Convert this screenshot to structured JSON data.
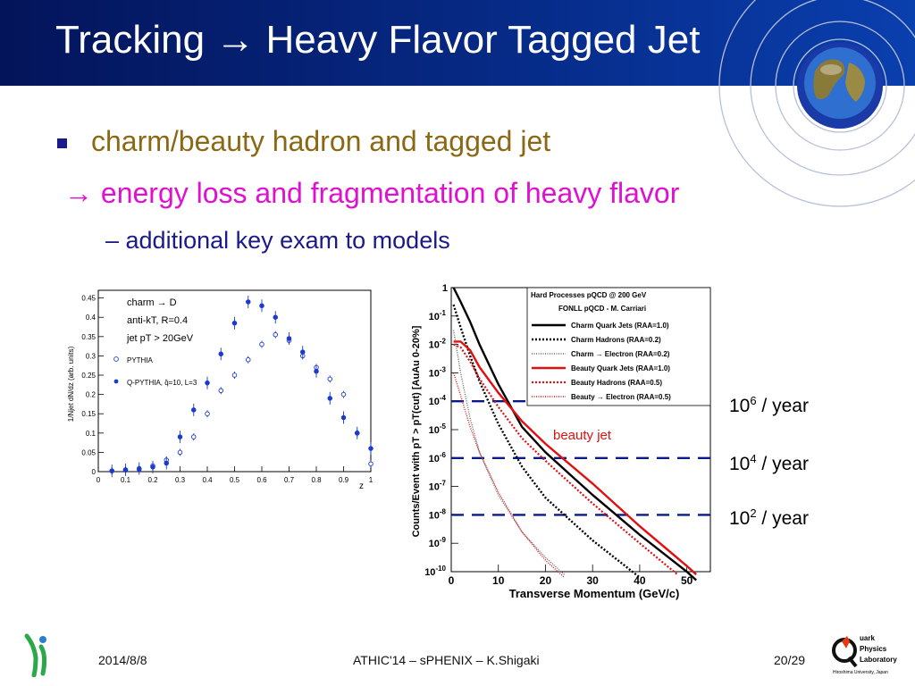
{
  "title": "Tracking → Heavy Flavor Tagged Jet",
  "bullets": {
    "b1": "charm/beauty hadron and tagged jet",
    "b2": "→ energy loss and fragmentation of heavy flavor",
    "b3": "– additional key exam to models"
  },
  "left_plot": {
    "legend": [
      "charm → D",
      "anti-kT, R=0.4",
      "jet pT > 20GeV"
    ],
    "series_names": [
      "PYTHIA",
      "Q-PYTHIA, q̂=10, L=3"
    ],
    "xlabel": "z",
    "ylabel": "1/Njet dN/dz (arb. units)",
    "xticks": [
      "0",
      "0.1",
      "0.2",
      "0.3",
      "0.4",
      "0.5",
      "0.6",
      "0.7",
      "0.8",
      "0.9",
      "1"
    ],
    "yticks": [
      "0",
      "0.05",
      "0.1",
      "0.15",
      "0.2",
      "0.25",
      "0.3",
      "0.35",
      "0.4",
      "0.45"
    ]
  },
  "right_plot": {
    "legend_title": "Hard Processes pQCD @ 200 GeV",
    "legend_subtitle": "FONLL pQCD - M. Carriari",
    "legend": [
      "Charm Quark Jets (RAA=1.0)",
      "Charm Hadrons (RAA=0.2)",
      "Charm → Electron (RAA=0.2)",
      "Beauty Quark Jets (RAA=1.0)",
      "Beauty Hadrons (RAA=0.5)",
      "Beauty → Electron (RAA=0.5)"
    ],
    "xlabel": "Transverse Momentum (GeV/c)",
    "ylabel": "Counts/Event with pT > pT(cut) [AuAu 0-20%]",
    "xticks": [
      "0",
      "10",
      "20",
      "30",
      "40",
      "50"
    ],
    "yticks": [
      "1",
      "10-1",
      "10-2",
      "10-3",
      "10-4",
      "10-5",
      "10-6",
      "10-7",
      "10-8",
      "10-9",
      "10-10"
    ],
    "annotation": "beauty jet",
    "rates": [
      {
        "base": "10",
        "exp": "6",
        "unit": " / year"
      },
      {
        "base": "10",
        "exp": "4",
        "unit": " / year"
      },
      {
        "base": "10",
        "exp": "2",
        "unit": " / year"
      }
    ]
  },
  "footer": {
    "date": "2014/8/8",
    "center": "ATHIC'14 – sPHENIX – K.Shigaki",
    "page": "20/29",
    "lab_lines": [
      "uark",
      "Physics",
      "Laboratory",
      "Hiroshima University, Japan"
    ]
  },
  "chart_data": [
    {
      "type": "scatter",
      "xlabel": "z",
      "ylabel": "1/Njet dN/dz (arb. units)",
      "xlim": [
        0,
        1
      ],
      "ylim": [
        0,
        0.47
      ],
      "series": [
        {
          "name": "PYTHIA",
          "x": [
            0.05,
            0.1,
            0.15,
            0.2,
            0.25,
            0.3,
            0.35,
            0.4,
            0.45,
            0.5,
            0.55,
            0.6,
            0.65,
            0.7,
            0.75,
            0.8,
            0.85,
            0.9,
            0.95,
            1.0
          ],
          "values": [
            0.002,
            0.004,
            0.006,
            0.015,
            0.03,
            0.05,
            0.09,
            0.15,
            0.21,
            0.25,
            0.29,
            0.33,
            0.355,
            0.34,
            0.3,
            0.27,
            0.24,
            0.2,
            0.1,
            0.02
          ]
        },
        {
          "name": "Q-PYTHIA, q̂=10, L=3",
          "x": [
            0.05,
            0.1,
            0.15,
            0.2,
            0.25,
            0.3,
            0.35,
            0.4,
            0.45,
            0.5,
            0.55,
            0.6,
            0.65,
            0.7,
            0.75,
            0.8,
            0.85,
            0.9,
            0.95,
            1.0
          ],
          "values": [
            0.002,
            0.005,
            0.008,
            0.012,
            0.022,
            0.09,
            0.16,
            0.23,
            0.305,
            0.385,
            0.44,
            0.43,
            0.4,
            0.345,
            0.31,
            0.26,
            0.19,
            0.14,
            0.1,
            0.06
          ]
        }
      ]
    },
    {
      "type": "line",
      "xlabel": "Transverse Momentum (GeV/c)",
      "ylabel": "Counts/Event with pT > pT(cut) [AuAu 0-20%]",
      "xlim": [
        0,
        55
      ],
      "ylim_log10": [
        -10,
        0
      ],
      "series": [
        {
          "name": "Charm Quark Jets (RAA=1.0)",
          "x": [
            0.5,
            2,
            4,
            6,
            10,
            15,
            20,
            30,
            40,
            50,
            52
          ],
          "values_log10": [
            0,
            -0.5,
            -1.2,
            -2.0,
            -3.4,
            -4.9,
            -5.8,
            -7.3,
            -8.7,
            -10,
            -10.3
          ]
        },
        {
          "name": "Charm Hadrons (RAA=0.2)",
          "x": [
            0.5,
            2,
            4,
            6,
            10,
            15,
            20,
            30,
            40
          ],
          "values_log10": [
            -0.6,
            -1.4,
            -2.4,
            -3.3,
            -4.8,
            -6.3,
            -7.4,
            -8.9,
            -10.2
          ]
        },
        {
          "name": "Charm → Electron (RAA=0.2)",
          "x": [
            0.5,
            2,
            4,
            6,
            10,
            15,
            20,
            24
          ],
          "values_log10": [
            -1.5,
            -3.0,
            -4.6,
            -5.8,
            -7.3,
            -8.6,
            -9.5,
            -10.1
          ]
        },
        {
          "name": "Beauty Quark Jets (RAA=1.0)",
          "x": [
            0.5,
            2,
            4,
            6,
            10,
            15,
            20,
            30,
            40,
            50,
            52
          ],
          "values_log10": [
            -1.9,
            -1.9,
            -2.2,
            -2.8,
            -3.7,
            -4.7,
            -5.5,
            -6.9,
            -8.4,
            -9.8,
            -10.1
          ]
        },
        {
          "name": "Beauty Hadrons (RAA=0.5)",
          "x": [
            0.5,
            2,
            4,
            6,
            10,
            15,
            20,
            30,
            40,
            48
          ],
          "values_log10": [
            -2.0,
            -2.1,
            -2.6,
            -3.2,
            -4.2,
            -5.3,
            -6.1,
            -7.6,
            -9.0,
            -10.1
          ]
        },
        {
          "name": "Beauty → Electron (RAA=0.5)",
          "x": [
            0.5,
            2,
            4,
            6,
            10,
            15,
            20,
            24
          ],
          "values_log10": [
            -3.0,
            -3.8,
            -4.9,
            -5.8,
            -7.2,
            -8.6,
            -9.6,
            -10.2
          ]
        }
      ],
      "reference_lines_log10": [
        -4,
        -6,
        -8
      ]
    }
  ]
}
